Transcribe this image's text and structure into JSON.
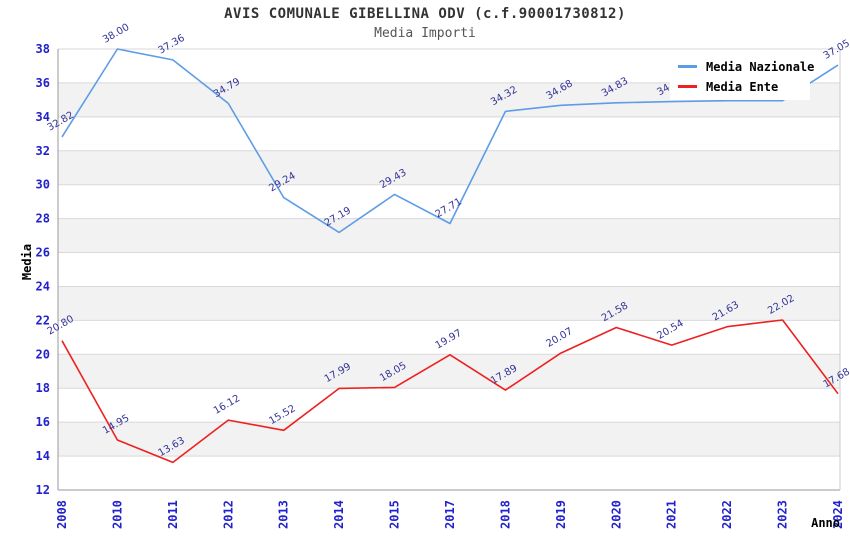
{
  "chart_data": {
    "type": "line",
    "title": "AVIS COMUNALE GIBELLINA ODV (c.f.90001730812)",
    "subtitle": "Media Importi",
    "xlabel": "Anno",
    "ylabel": "Media",
    "categories": [
      "2008",
      "2010",
      "2011",
      "2012",
      "2013",
      "2014",
      "2015",
      "2017",
      "2018",
      "2019",
      "2020",
      "2021",
      "2022",
      "2023",
      "2024"
    ],
    "series": [
      {
        "name": "Media Nazionale",
        "color": "#5d9ce6",
        "values": [
          32.82,
          38.0,
          37.36,
          34.79,
          29.24,
          27.19,
          29.43,
          27.71,
          34.32,
          34.68,
          34.83,
          34.9,
          34.95,
          34.95,
          37.05
        ]
      },
      {
        "name": "Media Ente",
        "color": "#ee2020",
        "values": [
          20.8,
          14.95,
          13.63,
          16.12,
          15.52,
          17.99,
          18.05,
          19.97,
          17.89,
          20.07,
          21.58,
          20.54,
          21.63,
          22.02,
          17.68
        ]
      }
    ],
    "ylim": [
      12,
      38
    ],
    "ytick_step": 2,
    "grid": true,
    "band_color": "#f2f2f2",
    "grid_color": "#d9d9d9",
    "axis_color": "#999999",
    "tick_label_color": "#2222cc",
    "value_label_color": "#333399",
    "legend_position": "top-right"
  }
}
